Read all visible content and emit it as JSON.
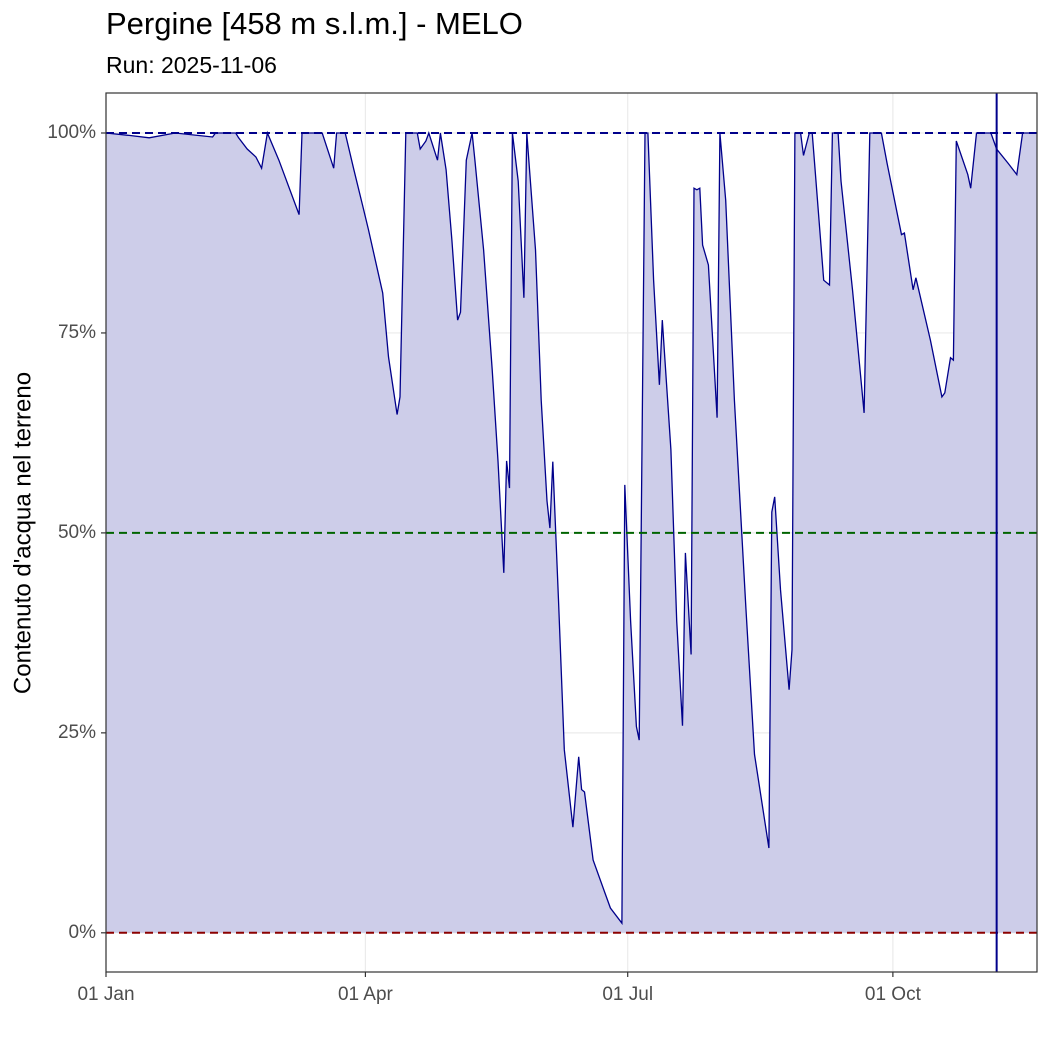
{
  "chart_data": {
    "type": "area",
    "title": "Pergine [458 m s.l.m.] - MELO",
    "subtitle": "Run: 2025-11-06",
    "ylabel": "Contenuto d'acqua nel terreno",
    "color": "#00008b",
    "fill_color": "#cdcde9",
    "grid": true,
    "xlim": [
      0,
      323
    ],
    "xticks": [
      {
        "value": 0,
        "label": "01 Jan"
      },
      {
        "value": 90,
        "label": "01 Apr"
      },
      {
        "value": 181,
        "label": "01 Jul"
      },
      {
        "value": 273,
        "label": "01 Oct"
      }
    ],
    "ylim": [
      -4.9,
      105
    ],
    "yticks": [
      {
        "value": 0,
        "label": "0%"
      },
      {
        "value": 25,
        "label": "25%"
      },
      {
        "value": 50,
        "label": "50%"
      },
      {
        "value": 75,
        "label": "75%"
      },
      {
        "value": 100,
        "label": "100%"
      }
    ],
    "hlines": [
      {
        "value": 100,
        "color": "#00008b"
      },
      {
        "value": 50,
        "color": "#006400"
      },
      {
        "value": 0,
        "color": "#8b0000"
      }
    ],
    "vlines": [
      {
        "value": 309,
        "color": "#00008b"
      }
    ],
    "x": [
      0,
      8,
      15,
      24,
      37,
      38,
      45,
      46,
      49,
      52,
      54,
      56,
      60,
      67,
      68,
      75,
      79,
      80,
      83,
      86,
      89,
      91,
      96,
      98,
      101,
      102,
      104,
      108,
      109,
      111,
      112,
      115,
      116,
      118,
      120,
      122,
      123,
      125,
      127,
      128,
      131,
      134,
      136,
      138,
      139,
      140,
      141,
      143,
      145,
      146,
      149,
      151,
      153,
      154,
      155,
      157,
      159,
      162,
      164,
      165,
      166,
      169,
      173,
      175,
      179,
      180,
      182,
      184,
      185,
      187,
      188,
      190,
      192,
      193,
      196,
      198,
      200,
      201,
      203,
      204,
      205,
      206,
      207,
      209,
      212,
      213,
      215,
      218,
      222,
      225,
      230,
      231,
      232,
      234,
      237,
      238,
      239,
      241,
      242,
      244,
      245,
      246,
      249,
      251,
      252,
      254,
      255,
      259,
      263,
      265,
      269,
      271,
      276,
      277,
      280,
      281,
      286,
      290,
      291,
      293,
      294,
      295,
      299,
      300,
      302,
      307,
      309,
      313,
      316,
      318,
      323
    ],
    "values": [
      100,
      99.7,
      99.4,
      100,
      99.5,
      100,
      100,
      99.4,
      98,
      97,
      95.6,
      100,
      96.6,
      89.8,
      100,
      100,
      95.6,
      100,
      100,
      95.4,
      91,
      88,
      80,
      72,
      64.8,
      67,
      100,
      100,
      98,
      99,
      100,
      96.6,
      100,
      95.4,
      86.6,
      76.6,
      77.6,
      96.6,
      100,
      96.6,
      85.4,
      70.4,
      59,
      45,
      59,
      55.6,
      100,
      94,
      79.4,
      100,
      85.4,
      66.6,
      54,
      50.6,
      58.9,
      41.6,
      22.9,
      13.2,
      22,
      17.9,
      17.6,
      9.1,
      5.1,
      3.1,
      1.2,
      56,
      39,
      25.8,
      24.1,
      100,
      100,
      81.6,
      68.5,
      76.6,
      60.4,
      39,
      25.9,
      47.5,
      34.8,
      93.1,
      92.9,
      93.1,
      86,
      83.5,
      64.4,
      100,
      91.6,
      66.6,
      40.6,
      22.3,
      10.6,
      52.6,
      54.5,
      42.9,
      30.4,
      35.4,
      100,
      100,
      97.2,
      100,
      100,
      95.4,
      81.6,
      81,
      100,
      100,
      94,
      80.4,
      65,
      100,
      100,
      96.2,
      87.3,
      87.5,
      80.4,
      81.9,
      74.1,
      67,
      67.5,
      71.9,
      71.6,
      99,
      94.8,
      93.1,
      100,
      100,
      98,
      96.2,
      94.8,
      100,
      100
    ]
  }
}
